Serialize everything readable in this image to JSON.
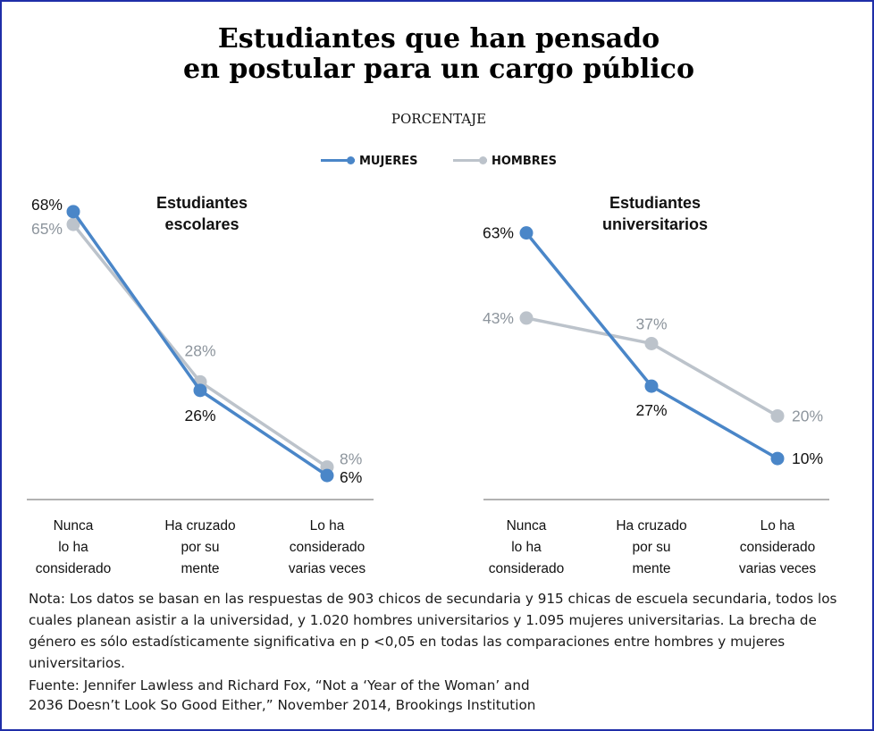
{
  "title_line1": "Estudiantes que han pensado",
  "title_line2": "en postular para un cargo público",
  "subtitle": "PORCENTAJE",
  "legend": [
    {
      "label": "MUJERES",
      "color": "#4a86c8"
    },
    {
      "label": "HOMBRES",
      "color": "#bcc3cb"
    }
  ],
  "chart_data": [
    {
      "type": "line",
      "title": "Estudiantes escolares",
      "categories": [
        "Nunca lo ha considerado",
        "Ha cruzado por su mente",
        "Lo ha considerado varias veces"
      ],
      "series": [
        {
          "name": "MUJERES",
          "values": [
            68,
            26,
            6
          ],
          "labels": [
            "68%",
            "26%",
            "6%"
          ]
        },
        {
          "name": "HOMBRES",
          "values": [
            65,
            28,
            8
          ],
          "labels": [
            "65%",
            "28%",
            "8%"
          ]
        }
      ]
    },
    {
      "type": "line",
      "title": "Estudiantes universitarios",
      "categories": [
        "Nunca lo ha considerado",
        "Ha cruzado por su mente",
        "Lo ha considerado varias veces"
      ],
      "series": [
        {
          "name": "MUJERES",
          "values": [
            63,
            27,
            10
          ],
          "labels": [
            "63%",
            "27%",
            "10%"
          ]
        },
        {
          "name": "HOMBRES",
          "values": [
            43,
            37,
            20
          ],
          "labels": [
            "43%",
            "37%",
            "20%"
          ]
        }
      ]
    }
  ],
  "note": "Nota: Los datos se basan en las respuestas de 903 chicos de secundaria y 915 chicas de escuela secundaria, todos los cuales planean asistir a la universidad, y 1.020 hombres universitarios y 1.095 mujeres universitarias. La brecha de género es sólo estadísticamente significativa en p <0,05 en todas las comparaciones entre hombres y mujeres universitarios.",
  "source_line1": "Fuente:  Jennifer Lawless and Richard Fox, “Not a ‘Year of the Woman’ and",
  "source_line2": "2036 Doesn’t Look So Good Either,” November 2014, Brookings Institution"
}
